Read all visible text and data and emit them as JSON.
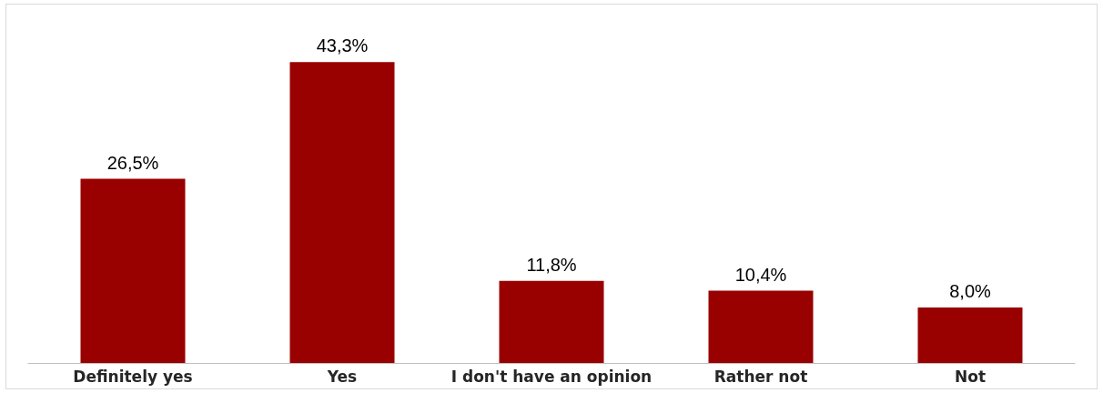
{
  "chart_data": {
    "type": "bar",
    "categories": [
      "Definitely yes",
      "Yes",
      "I don't have an opinion",
      "Rather not",
      "Not"
    ],
    "values": [
      26.5,
      43.3,
      11.8,
      10.4,
      8.0
    ],
    "value_labels": [
      "26,5%",
      "43,3%",
      "11,8%",
      "10,4%",
      "8,0%"
    ],
    "color": "#990000"
  }
}
